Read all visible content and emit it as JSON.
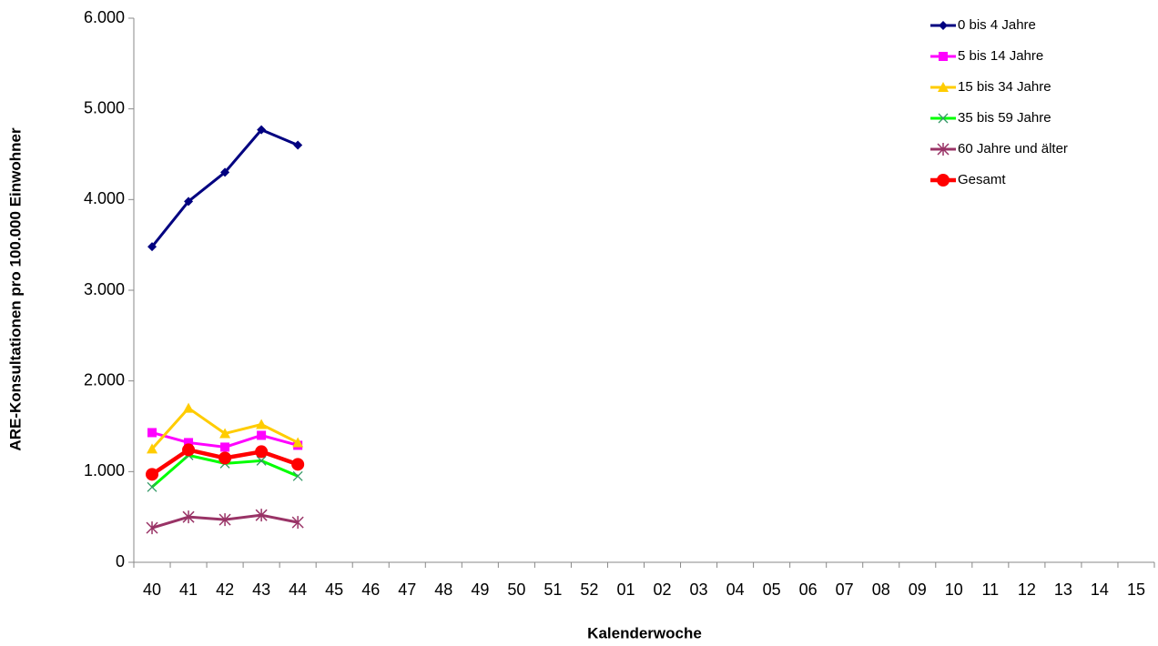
{
  "chart_data": {
    "type": "line",
    "x_label": "Kalenderwoche",
    "y_label": "ARE-Konsultationen pro 100.000 Einwohner",
    "categories": [
      "40",
      "41",
      "42",
      "43",
      "44",
      "45",
      "46",
      "47",
      "48",
      "49",
      "50",
      "51",
      "52",
      "01",
      "02",
      "03",
      "04",
      "05",
      "06",
      "07",
      "08",
      "09",
      "10",
      "11",
      "12",
      "13",
      "14",
      "15"
    ],
    "ylim": [
      0,
      6000
    ],
    "yticks": [
      0,
      {
        "value": 1000,
        "label": "1.000"
      },
      {
        "value": 2000,
        "label": "2.000"
      },
      {
        "value": 3000,
        "label": "3.000"
      },
      {
        "value": 4000,
        "label": "4.000"
      },
      {
        "value": 5000,
        "label": "5.000"
      },
      {
        "value": 6000,
        "label": "6.000"
      }
    ],
    "legend": "top-right",
    "series": [
      {
        "name": "0 bis 4 Jahre",
        "color": "#000080",
        "marker": "diamond",
        "values": [
          3480,
          3980,
          4300,
          4770,
          4600,
          null,
          null,
          null,
          null,
          null,
          null,
          null,
          null,
          null,
          null,
          null,
          null,
          null,
          null,
          null,
          null,
          null,
          null,
          null,
          null,
          null,
          null,
          null
        ]
      },
      {
        "name": "5 bis 14 Jahre",
        "color": "#FF00FF",
        "marker": "square",
        "values": [
          1430,
          1320,
          1270,
          1400,
          1290,
          null,
          null,
          null,
          null,
          null,
          null,
          null,
          null,
          null,
          null,
          null,
          null,
          null,
          null,
          null,
          null,
          null,
          null,
          null,
          null,
          null,
          null,
          null
        ]
      },
      {
        "name": "15 bis 34 Jahre",
        "color": "#FFCC00",
        "marker": "triangle",
        "values": [
          1250,
          1700,
          1420,
          1520,
          1320,
          null,
          null,
          null,
          null,
          null,
          null,
          null,
          null,
          null,
          null,
          null,
          null,
          null,
          null,
          null,
          null,
          null,
          null,
          null,
          null,
          null,
          null,
          null
        ]
      },
      {
        "name": "35 bis 59 Jahre",
        "color": "#00FF00",
        "marker": "x",
        "values": [
          830,
          1180,
          1090,
          1120,
          950,
          null,
          null,
          null,
          null,
          null,
          null,
          null,
          null,
          null,
          null,
          null,
          null,
          null,
          null,
          null,
          null,
          null,
          null,
          null,
          null,
          null,
          null,
          null
        ]
      },
      {
        "name": "60 Jahre und älter",
        "color": "#993366",
        "marker": "star",
        "values": [
          380,
          500,
          470,
          520,
          440,
          null,
          null,
          null,
          null,
          null,
          null,
          null,
          null,
          null,
          null,
          null,
          null,
          null,
          null,
          null,
          null,
          null,
          null,
          null,
          null,
          null,
          null,
          null
        ]
      },
      {
        "name": "Gesamt",
        "color": "#FF0000",
        "marker": "circle",
        "values": [
          970,
          1240,
          1150,
          1220,
          1080,
          null,
          null,
          null,
          null,
          null,
          null,
          null,
          null,
          null,
          null,
          null,
          null,
          null,
          null,
          null,
          null,
          null,
          null,
          null,
          null,
          null,
          null,
          null
        ]
      }
    ]
  }
}
